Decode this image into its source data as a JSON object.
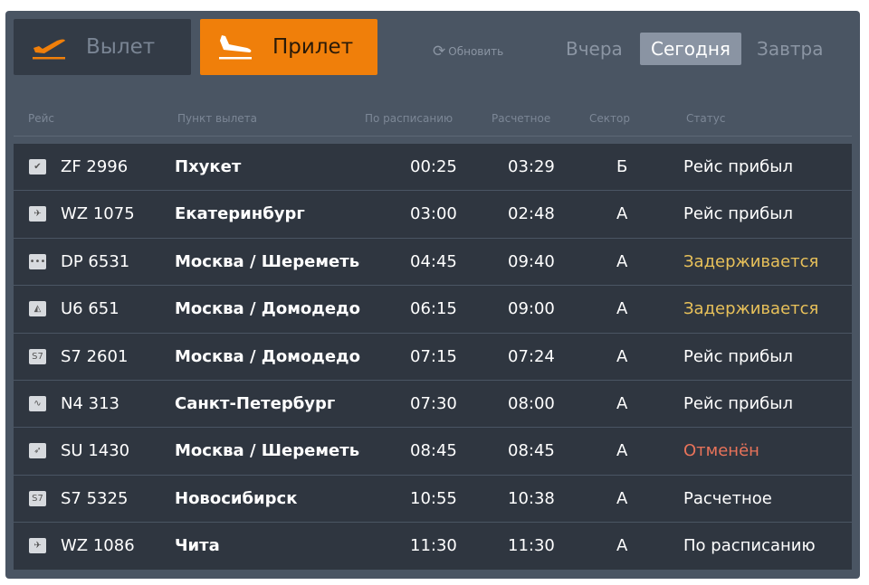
{
  "tabs": {
    "departure": "Вылет",
    "arrival": "Прилет",
    "active": "arrival"
  },
  "refresh_label": "Обновить",
  "days": [
    {
      "label": "Вчера",
      "active": false
    },
    {
      "label": "Сегодня",
      "active": true
    },
    {
      "label": "Завтра",
      "active": false
    }
  ],
  "columns": [
    "Рейс",
    "Пункт вылета",
    "По расписанию",
    "Расчетное",
    "Сектор",
    "Статус"
  ],
  "colors": {
    "accent": "#f07f0a",
    "panel": "#4a5563",
    "row": "#2f3640",
    "delayed": "#e8c15a",
    "cancelled": "#e8735a",
    "normal": "#ffffff"
  },
  "flights": [
    {
      "flight": "ZF 2996",
      "city": "Пхукет",
      "scheduled": "00:25",
      "estimated": "03:29",
      "sector": "Б",
      "status": "Рейс прибыл",
      "status_type": "normal",
      "logo": "check-logo-icon"
    },
    {
      "flight": "WZ 1075",
      "city": "Екатеринбург",
      "scheduled": "03:00",
      "estimated": "02:48",
      "sector": "А",
      "status": "Рейс прибыл",
      "status_type": "normal",
      "logo": "plane-logo-icon"
    },
    {
      "flight": "DP 6531",
      "city": "Москва / Шереметьево",
      "scheduled": "04:45",
      "estimated": "09:40",
      "sector": "А",
      "status": "Задерживается",
      "status_type": "delayed",
      "logo": "dots-logo-icon"
    },
    {
      "flight": "U6 651",
      "city": "Москва / Домодедово",
      "scheduled": "06:15",
      "estimated": "09:00",
      "sector": "А",
      "status": "Задерживается",
      "status_type": "delayed",
      "logo": "ural-logo-icon"
    },
    {
      "flight": "S7 2601",
      "city": "Москва / Домодедово",
      "scheduled": "07:15",
      "estimated": "07:24",
      "sector": "А",
      "status": "Рейс прибыл",
      "status_type": "normal",
      "logo": "s7-logo-icon"
    },
    {
      "flight": "N4 313",
      "city": "Санкт-Петербург",
      "scheduled": "07:30",
      "estimated": "08:00",
      "sector": "А",
      "status": "Рейс прибыл",
      "status_type": "normal",
      "logo": "wave-logo-icon"
    },
    {
      "flight": "SU 1430",
      "city": "Москва / Шереметьево",
      "scheduled": "08:45",
      "estimated": "08:45",
      "sector": "А",
      "status": "Отменён",
      "status_type": "cancelled",
      "logo": "aeroflot-logo-icon"
    },
    {
      "flight": "S7 5325",
      "city": "Новосибирск",
      "scheduled": "10:55",
      "estimated": "10:38",
      "sector": "А",
      "status": "Расчетное",
      "status_type": "normal",
      "logo": "s7-logo-icon"
    },
    {
      "flight": "WZ 1086",
      "city": "Чита",
      "scheduled": "11:30",
      "estimated": "11:30",
      "sector": "А",
      "status": "По расписанию",
      "status_type": "normal",
      "logo": "plane-logo-icon"
    }
  ]
}
